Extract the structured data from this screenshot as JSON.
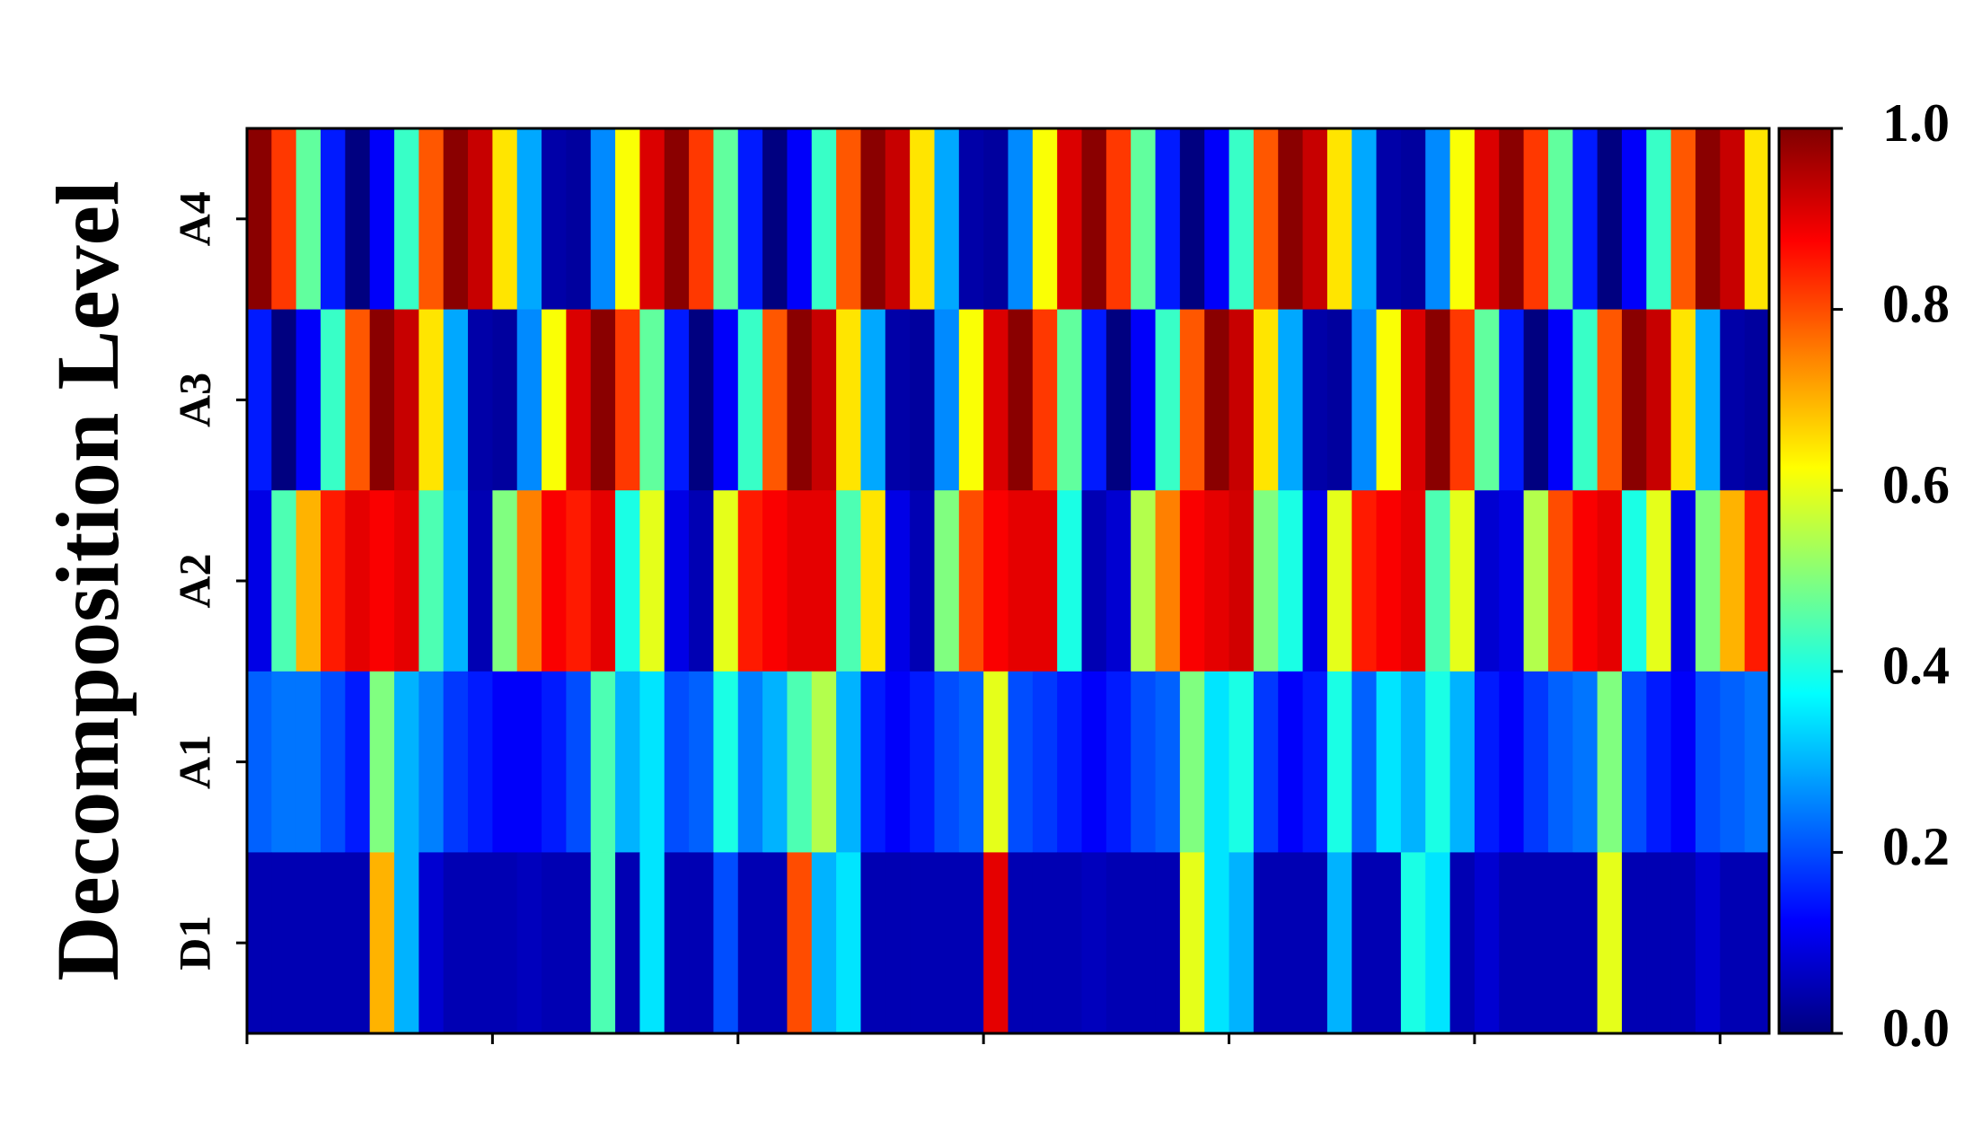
{
  "chart_data": {
    "type": "heatmap",
    "ylabel": "Decomposition Level",
    "colormap": "jet",
    "clim": [
      0,
      1
    ],
    "xlim": [
      0,
      62
    ],
    "xticks": [
      0,
      10,
      20,
      30,
      40,
      50,
      60
    ],
    "cbticks": [
      {
        "value": 0,
        "label": "0.0"
      },
      0.2,
      0.4,
      0.6,
      0.8,
      {
        "value": 1,
        "label": "1.0"
      }
    ],
    "series": [
      {
        "name": "A4",
        "values": [
          0.99,
          0.82,
          0.47,
          0.15,
          0.0,
          0.12,
          0.43,
          0.79,
          0.99,
          0.93,
          0.65,
          0.29,
          0.04,
          0.03,
          0.26,
          0.62,
          0.91,
          0.99,
          0.82,
          0.47,
          0.15,
          0.0,
          0.12,
          0.43,
          0.79,
          0.99,
          0.93,
          0.65,
          0.29,
          0.04,
          0.03,
          0.26,
          0.62,
          0.91,
          0.99,
          0.82,
          0.47,
          0.15,
          0.0,
          0.12,
          0.43,
          0.79,
          0.99,
          0.93,
          0.65,
          0.29,
          0.04,
          0.03,
          0.26,
          0.62,
          0.91,
          0.99,
          0.82,
          0.47,
          0.15,
          0.0,
          0.12,
          0.43,
          0.79,
          0.99,
          0.93,
          0.65
        ]
      },
      {
        "name": "A3",
        "values": [
          0.15,
          0.0,
          0.12,
          0.43,
          0.79,
          0.99,
          0.93,
          0.65,
          0.29,
          0.04,
          0.03,
          0.26,
          0.62,
          0.91,
          0.99,
          0.82,
          0.47,
          0.15,
          0.0,
          0.12,
          0.43,
          0.79,
          0.99,
          0.93,
          0.65,
          0.29,
          0.04,
          0.03,
          0.26,
          0.62,
          0.91,
          0.99,
          0.82,
          0.47,
          0.15,
          0.0,
          0.12,
          0.43,
          0.79,
          0.99,
          0.93,
          0.65,
          0.29,
          0.04,
          0.03,
          0.26,
          0.62,
          0.91,
          0.99,
          0.82,
          0.47,
          0.15,
          0.0,
          0.12,
          0.43,
          0.79,
          0.99,
          0.93,
          0.65,
          0.29,
          0.04,
          0.03
        ]
      },
      {
        "name": "A2",
        "values": [
          0.1,
          0.45,
          0.7,
          0.85,
          0.9,
          0.88,
          0.9,
          0.45,
          0.3,
          0.05,
          0.5,
          0.75,
          0.88,
          0.85,
          0.9,
          0.4,
          0.6,
          0.1,
          0.05,
          0.6,
          0.85,
          0.88,
          0.9,
          0.9,
          0.45,
          0.65,
          0.1,
          0.05,
          0.5,
          0.8,
          0.88,
          0.9,
          0.9,
          0.4,
          0.05,
          0.08,
          0.55,
          0.75,
          0.88,
          0.9,
          0.92,
          0.5,
          0.4,
          0.1,
          0.6,
          0.85,
          0.88,
          0.9,
          0.45,
          0.6,
          0.08,
          0.1,
          0.55,
          0.8,
          0.88,
          0.9,
          0.4,
          0.6,
          0.1,
          0.5,
          0.7,
          0.85
        ]
      },
      {
        "name": "A1",
        "values": [
          0.22,
          0.24,
          0.24,
          0.2,
          0.15,
          0.5,
          0.3,
          0.25,
          0.18,
          0.15,
          0.12,
          0.12,
          0.15,
          0.2,
          0.45,
          0.3,
          0.35,
          0.2,
          0.22,
          0.4,
          0.25,
          0.3,
          0.45,
          0.55,
          0.3,
          0.15,
          0.12,
          0.15,
          0.2,
          0.22,
          0.6,
          0.2,
          0.18,
          0.15,
          0.12,
          0.15,
          0.2,
          0.22,
          0.5,
          0.35,
          0.4,
          0.18,
          0.12,
          0.15,
          0.4,
          0.22,
          0.35,
          0.3,
          0.4,
          0.3,
          0.15,
          0.12,
          0.18,
          0.22,
          0.24,
          0.5,
          0.2,
          0.15,
          0.12,
          0.2,
          0.22,
          0.24
        ]
      },
      {
        "name": "D1",
        "values": [
          0.05,
          0.05,
          0.05,
          0.05,
          0.05,
          0.7,
          0.3,
          0.08,
          0.05,
          0.05,
          0.05,
          0.06,
          0.05,
          0.05,
          0.45,
          0.05,
          0.35,
          0.05,
          0.05,
          0.2,
          0.05,
          0.05,
          0.8,
          0.3,
          0.35,
          0.05,
          0.05,
          0.05,
          0.05,
          0.05,
          0.9,
          0.05,
          0.05,
          0.05,
          0.06,
          0.05,
          0.05,
          0.05,
          0.6,
          0.35,
          0.3,
          0.05,
          0.05,
          0.05,
          0.3,
          0.05,
          0.05,
          0.4,
          0.35,
          0.05,
          0.08,
          0.05,
          0.05,
          0.05,
          0.05,
          0.6,
          0.05,
          0.05,
          0.05,
          0.08,
          0.05,
          0.05
        ]
      }
    ]
  }
}
